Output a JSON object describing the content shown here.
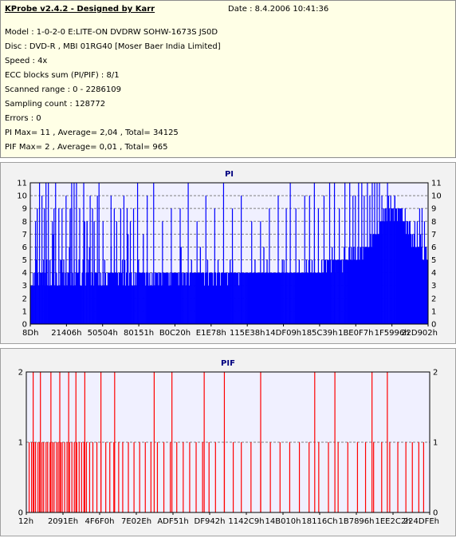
{
  "info": {
    "title": "KProbe v2.4.2 - Designed by Karr",
    "date": "Date : 8.4.2006 10:41:36",
    "lines": [
      "Model : 1-0-2-0 E:LITE-ON DVDRW SOHW-1673S JS0D",
      "Disc : DVD-R , MBI 01RG40 [Moser Baer India Limited]",
      "Speed : 4x",
      "ECC blocks sum (PI/PIF) : 8/1",
      "Scanned range : 0 - 2286109",
      "Sampling count : 128772",
      "Errors : 0",
      "PI Max= 11 , Average= 2,04 , Total= 34125",
      "PIF Max= 2 , Average= 0,01 , Total= 965"
    ]
  },
  "colors": {
    "pi_bar": "#0000ff",
    "pif_bar": "#ff0000",
    "plot_bg": "#f0f0ff",
    "grid_pi": "#808080",
    "title": "#000080"
  },
  "chart_data": [
    {
      "type": "bar",
      "title": "PI",
      "ylim": [
        0,
        11
      ],
      "yticks": [
        0,
        1,
        2,
        3,
        4,
        5,
        6,
        7,
        8,
        9,
        10,
        11
      ],
      "xticks": [
        "8Dh",
        "21406h",
        "50504h",
        "80151h",
        "B0C20h",
        "E1E78h",
        "115E38h",
        "14DF09h",
        "185C39h",
        "1BE0F7h",
        "1F5996h",
        "22D902h"
      ],
      "grid": "dashed-horizontal",
      "legend": "none",
      "series": [
        {
          "values": [
            3,
            3,
            3,
            4,
            3,
            4,
            6,
            5,
            9,
            4,
            3,
            3,
            4,
            4,
            3,
            4,
            5,
            3,
            4,
            8,
            5,
            3,
            5,
            3,
            5,
            3,
            3,
            4,
            7,
            3,
            3,
            3,
            4,
            3,
            3,
            3,
            3,
            5,
            5,
            3,
            4,
            5,
            3,
            4,
            4,
            3,
            4,
            4,
            6,
            9,
            3,
            9,
            4,
            3,
            5,
            3,
            4,
            5,
            4,
            4,
            5,
            3,
            3,
            3,
            4,
            5,
            5,
            8,
            3,
            4,
            8,
            4,
            5,
            6,
            4,
            3,
            4,
            4,
            3,
            5,
            4,
            4,
            4,
            4,
            3,
            5,
            3,
            4,
            3,
            3,
            4,
            3,
            5,
            4,
            3,
            3,
            4,
            4,
            4,
            4,
            6,
            4,
            4,
            4,
            5,
            4,
            4,
            4,
            4,
            3,
            4,
            4,
            4,
            4,
            5,
            3,
            4,
            5,
            3,
            4,
            4,
            7,
            3,
            4,
            4,
            4,
            3,
            3,
            3,
            3,
            4,
            3,
            4,
            4,
            5,
            4,
            4,
            4,
            4,
            4,
            7,
            4,
            4,
            3,
            4,
            4,
            4,
            3,
            4,
            3,
            3,
            4,
            3,
            4,
            3,
            4,
            4,
            4,
            4,
            3,
            4,
            4,
            4,
            3,
            3,
            4,
            4,
            4,
            4,
            4,
            4,
            4,
            3,
            4,
            3,
            4,
            4,
            4,
            4,
            4,
            4,
            4,
            4,
            4,
            3,
            4,
            6,
            6,
            4,
            3,
            4,
            4,
            4,
            3,
            4,
            4,
            4,
            3,
            4,
            4,
            5,
            4,
            4,
            4,
            4,
            4,
            4,
            4,
            4,
            4,
            4,
            6,
            4,
            4,
            4,
            4,
            3,
            4,
            4,
            4,
            5,
            3,
            4,
            4,
            4,
            4,
            4,
            3,
            4,
            4,
            4,
            3,
            4,
            5,
            4,
            4,
            3,
            4,
            4,
            4,
            4,
            4,
            4,
            4,
            4,
            3,
            4,
            4,
            5,
            4,
            4,
            5,
            4,
            4,
            4,
            4,
            4,
            4,
            4,
            3,
            4,
            4,
            4,
            4,
            4,
            4,
            4,
            4,
            4,
            4,
            4,
            4,
            4,
            4,
            4,
            4,
            4,
            4,
            4,
            5,
            4,
            4,
            4,
            4,
            4,
            4,
            4,
            4,
            4,
            4,
            6,
            4,
            4,
            4,
            5,
            4,
            4,
            4,
            4,
            4,
            4,
            4,
            4,
            4,
            4,
            4,
            4,
            4,
            4,
            4,
            4,
            4,
            4,
            5,
            4,
            5,
            4,
            4,
            4,
            4,
            4,
            4,
            4,
            4,
            4,
            4,
            4,
            4,
            4,
            4,
            4,
            4,
            4,
            4,
            5,
            4,
            4,
            4,
            4,
            4,
            4,
            4,
            4,
            5,
            4,
            4,
            5,
            5,
            4,
            4,
            5,
            4,
            4,
            5,
            4,
            4,
            4,
            4,
            4,
            4,
            4,
            4,
            5,
            4,
            4,
            5,
            5,
            5,
            4,
            5,
            5,
            5,
            4,
            5,
            4,
            6,
            5,
            5,
            4,
            5,
            5,
            5,
            5,
            5,
            5,
            5,
            5,
            5,
            4,
            5,
            6,
            5,
            5,
            5,
            5,
            5,
            6,
            5,
            5,
            6,
            5,
            5,
            6,
            5,
            6,
            5,
            5,
            6,
            5,
            5,
            6,
            6,
            6,
            5,
            6,
            6,
            6,
            6,
            6,
            6,
            6,
            6,
            6,
            7,
            6,
            6,
            7,
            7,
            6,
            7,
            7,
            8,
            7,
            7,
            7,
            8,
            8,
            7,
            8,
            9,
            8,
            8,
            9,
            8,
            9,
            10,
            9,
            8,
            9,
            9,
            8,
            9,
            8,
            10,
            9,
            9,
            8,
            9,
            9,
            8,
            9,
            9,
            9,
            8,
            8,
            8,
            8,
            7,
            8,
            8,
            7,
            8,
            7,
            7,
            6,
            7,
            6,
            7,
            6,
            6,
            6,
            6,
            6,
            6,
            6,
            7,
            6,
            5,
            5,
            5,
            5,
            6,
            6,
            5,
            5
          ],
          "peaks": [
            8,
            11,
            10,
            9,
            11,
            11,
            8,
            9,
            11,
            9,
            9,
            10,
            8,
            11,
            11,
            11,
            9,
            11,
            8,
            10,
            9,
            8,
            10,
            11,
            8,
            10,
            9,
            8,
            9,
            10,
            9,
            8,
            9,
            11,
            10,
            11,
            8,
            9,
            9,
            11,
            8,
            10,
            9,
            11,
            9,
            10,
            8,
            8,
            9,
            10,
            9,
            11,
            9,
            10,
            10,
            11,
            9,
            10,
            11,
            11,
            9,
            11,
            11,
            10,
            10,
            11,
            11,
            10,
            11,
            10,
            11,
            11,
            11,
            11,
            10,
            9,
            11,
            10,
            9,
            10,
            8,
            9,
            9,
            9,
            8,
            8,
            7,
            8,
            8,
            9,
            9,
            8
          ],
          "peak_positions": [
            6,
            11,
            14,
            17,
            19,
            22,
            27,
            29,
            31,
            35,
            39,
            44,
            49,
            51,
            54,
            57,
            61,
            66,
            70,
            74,
            77,
            79,
            83,
            85,
            90,
            100,
            104,
            107,
            112,
            116,
            120,
            124,
            128,
            133,
            145,
            153,
            164,
            175,
            186,
            196,
            207,
            218,
            229,
            240,
            251,
            262,
            275,
            286,
            297,
            308,
            318,
            323,
            330,
            341,
            347,
            353,
            358,
            365,
            372,
            378,
            384,
            391,
            397,
            401,
            404,
            408,
            412,
            415,
            419,
            422,
            425,
            428,
            431,
            434,
            437,
            441,
            444,
            448,
            450,
            453,
            456,
            459,
            462,
            466,
            469,
            472,
            475,
            478,
            481,
            484,
            487,
            490
          ]
        }
      ]
    },
    {
      "type": "bar",
      "title": "PIF",
      "ylim": [
        0,
        2
      ],
      "yticks": [
        0,
        1,
        2
      ],
      "xticks": [
        "12h",
        "2091Eh",
        "4F6F0h",
        "7E02Eh",
        "ADF51h",
        "DF942h",
        "1142C9h",
        "14B010h",
        "18116Ch",
        "1B7896h",
        "1EE2C2h",
        "224DFEh"
      ],
      "grid": "dashed-horizontal",
      "legend": "none",
      "series": [
        {
          "ones": [
            3,
            6,
            9,
            11,
            14,
            16,
            19,
            21,
            24,
            26,
            29,
            32,
            34,
            37,
            39,
            42,
            44,
            47,
            50,
            53,
            56,
            59,
            62,
            65,
            68,
            71,
            74,
            78,
            82,
            87,
            92,
            98,
            103,
            108,
            114,
            119,
            126,
            133,
            140,
            147,
            154,
            162,
            170,
            178,
            186,
            194,
            202,
            210,
            218,
            226,
            234,
            245,
            256,
            266,
            278,
            290,
            302,
            314,
            326,
            338,
            350,
            362,
            374,
            386,
            398,
            410,
            420,
            430,
            440,
            450,
            460,
            470,
            478,
            486,
            492
          ],
          "twos": [
            8,
            17,
            30,
            41,
            52,
            61,
            72,
            92,
            109,
            158,
            180,
            220,
            245,
            290,
            357,
            382,
            428,
            447
          ]
        }
      ]
    }
  ]
}
